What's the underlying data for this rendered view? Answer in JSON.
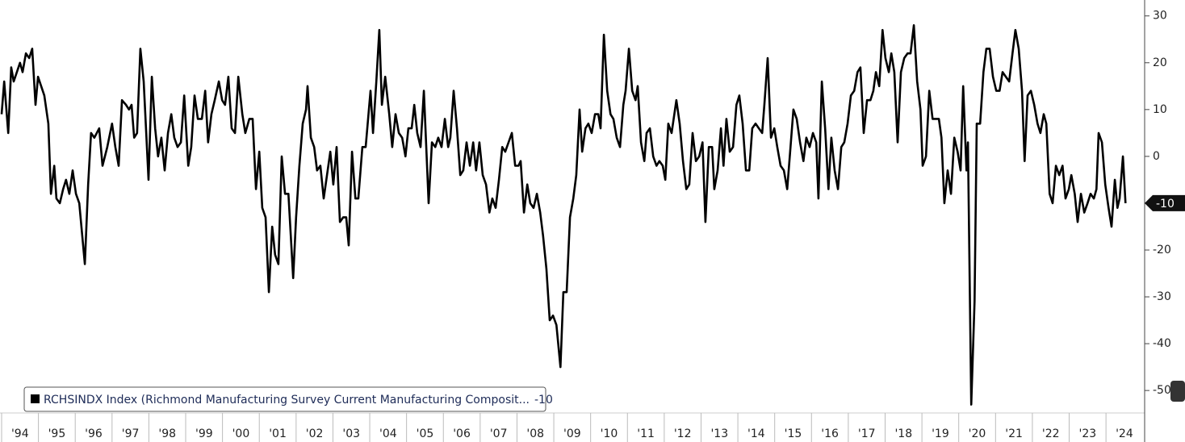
{
  "chart_data": {
    "type": "line",
    "x": [
      1994.0,
      1994.07,
      1994.18,
      1994.26,
      1994.33,
      1994.5,
      1994.57,
      1994.66,
      1994.75,
      1994.83,
      1994.92,
      1994.99,
      1995.16,
      1995.27,
      1995.34,
      1995.43,
      1995.49,
      1995.58,
      1995.67,
      1995.75,
      1995.84,
      1995.93,
      1996.02,
      1996.11,
      1996.26,
      1996.35,
      1996.43,
      1996.52,
      1996.65,
      1996.74,
      1996.87,
      1997.0,
      1997.09,
      1997.18,
      1997.27,
      1997.38,
      1997.46,
      1997.53,
      1997.6,
      1997.68,
      1997.77,
      1997.86,
      1997.99,
      1998.08,
      1998.17,
      1998.25,
      1998.34,
      1998.43,
      1998.52,
      1998.61,
      1998.69,
      1998.78,
      1998.87,
      1998.96,
      1999.07,
      1999.15,
      1999.24,
      1999.33,
      1999.44,
      1999.53,
      1999.61,
      1999.7,
      1999.79,
      1999.9,
      1999.99,
      2000.07,
      2000.16,
      2000.25,
      2000.34,
      2000.43,
      2000.54,
      2000.62,
      2000.73,
      2000.82,
      2000.91,
      2001.0,
      2001.08,
      2001.17,
      2001.26,
      2001.35,
      2001.43,
      2001.52,
      2001.61,
      2001.7,
      2001.79,
      2001.92,
      2002.0,
      2002.09,
      2002.18,
      2002.27,
      2002.31,
      2002.4,
      2002.49,
      2002.57,
      2002.66,
      2002.75,
      2002.84,
      2002.93,
      2003.01,
      2003.1,
      2003.19,
      2003.28,
      2003.36,
      2003.43,
      2003.52,
      2003.61,
      2003.69,
      2003.8,
      2003.89,
      2004.02,
      2004.09,
      2004.18,
      2004.26,
      2004.33,
      2004.42,
      2004.53,
      2004.61,
      2004.7,
      2004.79,
      2004.88,
      2004.97,
      2005.05,
      2005.14,
      2005.21,
      2005.29,
      2005.38,
      2005.47,
      2005.6,
      2005.69,
      2005.78,
      2005.86,
      2005.95,
      2006.04,
      2006.13,
      2006.19,
      2006.28,
      2006.37,
      2006.46,
      2006.54,
      2006.63,
      2006.72,
      2006.81,
      2006.89,
      2006.98,
      2007.07,
      2007.16,
      2007.25,
      2007.33,
      2007.42,
      2007.51,
      2007.6,
      2007.68,
      2007.77,
      2007.86,
      2007.95,
      2008.04,
      2008.1,
      2008.19,
      2008.28,
      2008.36,
      2008.45,
      2008.54,
      2008.63,
      2008.71,
      2008.8,
      2008.89,
      2008.98,
      2009.07,
      2009.18,
      2009.26,
      2009.35,
      2009.44,
      2009.53,
      2009.61,
      2009.7,
      2009.77,
      2009.86,
      2009.94,
      2010.03,
      2010.12,
      2010.21,
      2010.27,
      2010.36,
      2010.45,
      2010.54,
      2010.62,
      2010.71,
      2010.8,
      2010.89,
      2010.95,
      2011.04,
      2011.13,
      2011.22,
      2011.28,
      2011.37,
      2011.46,
      2011.52,
      2011.61,
      2011.7,
      2011.79,
      2011.87,
      2011.96,
      2012.03,
      2012.11,
      2012.2,
      2012.33,
      2012.42,
      2012.51,
      2012.6,
      2012.68,
      2012.77,
      2012.86,
      2012.95,
      2013.04,
      2013.12,
      2013.21,
      2013.3,
      2013.36,
      2013.45,
      2013.54,
      2013.61,
      2013.69,
      2013.78,
      2013.87,
      2013.96,
      2014.04,
      2014.13,
      2014.22,
      2014.31,
      2014.39,
      2014.48,
      2014.57,
      2014.66,
      2014.72,
      2014.81,
      2014.9,
      2014.99,
      2015.07,
      2015.16,
      2015.25,
      2015.34,
      2015.43,
      2015.51,
      2015.6,
      2015.69,
      2015.78,
      2015.86,
      2015.95,
      2016.04,
      2016.13,
      2016.19,
      2016.28,
      2016.37,
      2016.46,
      2016.54,
      2016.63,
      2016.72,
      2016.81,
      2016.89,
      2016.98,
      2017.07,
      2017.16,
      2017.25,
      2017.33,
      2017.42,
      2017.51,
      2017.6,
      2017.68,
      2017.75,
      2017.84,
      2017.93,
      2018.01,
      2018.1,
      2018.17,
      2018.25,
      2018.34,
      2018.43,
      2018.52,
      2018.61,
      2018.69,
      2018.78,
      2018.87,
      2018.96,
      2019.02,
      2019.11,
      2019.2,
      2019.29,
      2019.37,
      2019.46,
      2019.53,
      2019.61,
      2019.7,
      2019.79,
      2019.88,
      2019.97,
      2020.05,
      2020.12,
      2020.21,
      2020.25,
      2020.34,
      2020.43,
      2020.49,
      2020.58,
      2020.67,
      2020.75,
      2020.84,
      2020.93,
      2021.02,
      2021.11,
      2021.19,
      2021.28,
      2021.37,
      2021.46,
      2021.54,
      2021.63,
      2021.72,
      2021.79,
      2021.87,
      2021.96,
      2022.05,
      2022.14,
      2022.22,
      2022.31,
      2022.38,
      2022.47,
      2022.55,
      2022.64,
      2022.73,
      2022.82,
      2022.9,
      2022.99,
      2023.06,
      2023.15,
      2023.23,
      2023.32,
      2023.41,
      2023.5,
      2023.58,
      2023.67,
      2023.74,
      2023.8,
      2023.89,
      2023.98,
      2024.07,
      2024.15,
      2024.24,
      2024.31,
      2024.37,
      2024.46,
      2024.53
    ],
    "series": [
      {
        "name": "RCHSINDX Index (Richmond Manufacturing Survey Current Manufacturing Composit...",
        "color": "#000000",
        "values": [
          9,
          16,
          5,
          19,
          16,
          20,
          18,
          22,
          21,
          23,
          11,
          17,
          13,
          7,
          -8,
          -2,
          -9,
          -10,
          -7,
          -5,
          -8,
          -3,
          -8,
          -10,
          -23,
          -6,
          5,
          4,
          6,
          -2,
          2,
          7,
          2,
          -2,
          12,
          11,
          10,
          11,
          4,
          5,
          23,
          16,
          -5,
          17,
          6,
          0,
          4,
          -3,
          5,
          9,
          4,
          2,
          3,
          13,
          -2,
          2,
          13,
          8,
          8,
          14,
          3,
          9,
          12,
          16,
          12,
          11,
          17,
          6,
          5,
          17,
          9,
          5,
          8,
          8,
          -7,
          1,
          -11,
          -13,
          -29,
          -15,
          -21,
          -23,
          0,
          -8,
          -8,
          -26,
          -13,
          -2,
          7,
          10,
          15,
          4,
          2,
          -3,
          -2,
          -9,
          -4,
          1,
          -6,
          2,
          -14,
          -13,
          -13,
          -19,
          1,
          -9,
          -9,
          2,
          2,
          14,
          5,
          16,
          27,
          11,
          17,
          9,
          2,
          9,
          5,
          4,
          0,
          6,
          6,
          11,
          5,
          2,
          14,
          -10,
          3,
          2,
          4,
          2,
          8,
          2,
          4,
          14,
          6,
          -4,
          -3,
          3,
          -2,
          3,
          -3,
          3,
          -4,
          -6,
          -12,
          -9,
          -11,
          -5,
          2,
          1,
          3,
          5,
          -2,
          -2,
          -1,
          -12,
          -6,
          -10,
          -11,
          -8,
          -12,
          -17,
          -24,
          -35,
          -34,
          -36,
          -45,
          -29,
          -29,
          -13,
          -9,
          -4,
          10,
          1,
          6,
          7,
          5,
          9,
          9,
          6,
          26,
          14,
          9,
          8,
          4,
          2,
          11,
          14,
          23,
          14,
          12,
          15,
          3,
          -1,
          5,
          6,
          0,
          -2,
          -1,
          -2,
          -5,
          7,
          5,
          12,
          7,
          -1,
          -7,
          -6,
          5,
          -1,
          0,
          3,
          -14,
          2,
          2,
          -7,
          -3,
          6,
          -2,
          8,
          1,
          2,
          11,
          13,
          7,
          -3,
          -3,
          6,
          7,
          6,
          5,
          11,
          21,
          4,
          6,
          2,
          -2,
          -3,
          -7,
          2,
          10,
          8,
          3,
          -1,
          4,
          2,
          5,
          3,
          -9,
          16,
          6,
          -7,
          4,
          -3,
          -7,
          2,
          3,
          7,
          13,
          14,
          18,
          19,
          5,
          12,
          12,
          14,
          18,
          15,
          27,
          21,
          18,
          22,
          18,
          3,
          18,
          21,
          22,
          22,
          28,
          16,
          10,
          -2,
          0,
          14,
          8,
          8,
          8,
          4,
          -10,
          -3,
          -8,
          4,
          1,
          -3,
          15,
          -3,
          3,
          -53,
          -31,
          7,
          7,
          18,
          23,
          23,
          17,
          14,
          14,
          18,
          17,
          16,
          22,
          27,
          23,
          14,
          -1,
          13,
          14,
          11,
          7,
          5,
          9,
          7,
          -8,
          -10,
          -2,
          -4,
          -2,
          -9,
          -7,
          -4,
          -8,
          -14,
          -8,
          -12,
          -10,
          -8,
          -9,
          -7,
          5,
          3,
          -6,
          -11,
          -15,
          -5,
          -11,
          -9,
          0,
          -10
        ]
      }
    ],
    "last_value": -10,
    "xlim": [
      1994,
      2025.05
    ],
    "xticks": [
      {
        "value": 1994,
        "label": "'94"
      },
      {
        "value": 1995,
        "label": "'95"
      },
      {
        "value": 1996,
        "label": "'96"
      },
      {
        "value": 1997,
        "label": "'97"
      },
      {
        "value": 1998,
        "label": "'98"
      },
      {
        "value": 1999,
        "label": "'99"
      },
      {
        "value": 2000,
        "label": "'00"
      },
      {
        "value": 2001,
        "label": "'01"
      },
      {
        "value": 2002,
        "label": "'02"
      },
      {
        "value": 2003,
        "label": "'03"
      },
      {
        "value": 2004,
        "label": "'04"
      },
      {
        "value": 2005,
        "label": "'05"
      },
      {
        "value": 2006,
        "label": "'06"
      },
      {
        "value": 2007,
        "label": "'07"
      },
      {
        "value": 2008,
        "label": "'08"
      },
      {
        "value": 2009,
        "label": "'09"
      },
      {
        "value": 2010,
        "label": "'10"
      },
      {
        "value": 2011,
        "label": "'11"
      },
      {
        "value": 2012,
        "label": "'12"
      },
      {
        "value": 2013,
        "label": "'13"
      },
      {
        "value": 2014,
        "label": "'14"
      },
      {
        "value": 2015,
        "label": "'15"
      },
      {
        "value": 2016,
        "label": "'16"
      },
      {
        "value": 2017,
        "label": "'17"
      },
      {
        "value": 2018,
        "label": "'18"
      },
      {
        "value": 2019,
        "label": "'19"
      },
      {
        "value": 2020,
        "label": "'20"
      },
      {
        "value": 2021,
        "label": "'21"
      },
      {
        "value": 2022,
        "label": "'22"
      },
      {
        "value": 2023,
        "label": "'23"
      },
      {
        "value": 2024,
        "label": "'24"
      }
    ],
    "ylim": [
      -54.8,
      33.4
    ],
    "yticks": [
      30,
      20,
      10,
      0,
      -10,
      -20,
      -30,
      -40,
      -50
    ],
    "y_axis_side": "right",
    "grid": false
  }
}
